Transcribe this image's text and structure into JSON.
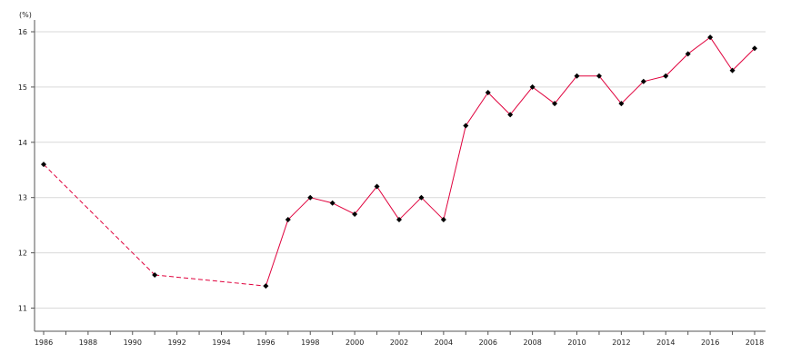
{
  "chart_data": {
    "type": "line",
    "title": "",
    "xlabel": "",
    "ylabel": "(%)",
    "xlim": [
      1986,
      2018
    ],
    "ylim": [
      10.6,
      16.2
    ],
    "y_ticks": [
      11,
      12,
      13,
      14,
      15,
      16
    ],
    "x_ticks": [
      1986,
      1988,
      1990,
      1992,
      1994,
      1996,
      1998,
      2000,
      2002,
      2004,
      2006,
      2008,
      2010,
      2012,
      2014,
      2016,
      2018
    ],
    "grid": "horizontal",
    "legend": "none",
    "series": [
      {
        "line_color": "#e0003c",
        "marker_color": "#000000",
        "marker": "diamond",
        "dashed_segments": [
          [
            1986,
            1991
          ],
          [
            1991,
            1996
          ]
        ],
        "points": [
          {
            "x": 1986,
            "y": 13.6
          },
          {
            "x": 1991,
            "y": 11.6
          },
          {
            "x": 1996,
            "y": 11.4
          },
          {
            "x": 1997,
            "y": 12.6
          },
          {
            "x": 1998,
            "y": 13.0
          },
          {
            "x": 1999,
            "y": 12.9
          },
          {
            "x": 2000,
            "y": 12.7
          },
          {
            "x": 2001,
            "y": 13.2
          },
          {
            "x": 2002,
            "y": 12.6
          },
          {
            "x": 2003,
            "y": 13.0
          },
          {
            "x": 2004,
            "y": 12.6
          },
          {
            "x": 2005,
            "y": 14.3
          },
          {
            "x": 2006,
            "y": 14.9
          },
          {
            "x": 2007,
            "y": 14.5
          },
          {
            "x": 2008,
            "y": 15.0
          },
          {
            "x": 2009,
            "y": 14.7
          },
          {
            "x": 2010,
            "y": 15.2
          },
          {
            "x": 2011,
            "y": 15.2
          },
          {
            "x": 2012,
            "y": 14.7
          },
          {
            "x": 2013,
            "y": 15.1
          },
          {
            "x": 2014,
            "y": 15.2
          },
          {
            "x": 2015,
            "y": 15.6
          },
          {
            "x": 2016,
            "y": 15.9
          },
          {
            "x": 2017,
            "y": 15.3
          },
          {
            "x": 2018,
            "y": 15.7
          }
        ]
      }
    ]
  }
}
